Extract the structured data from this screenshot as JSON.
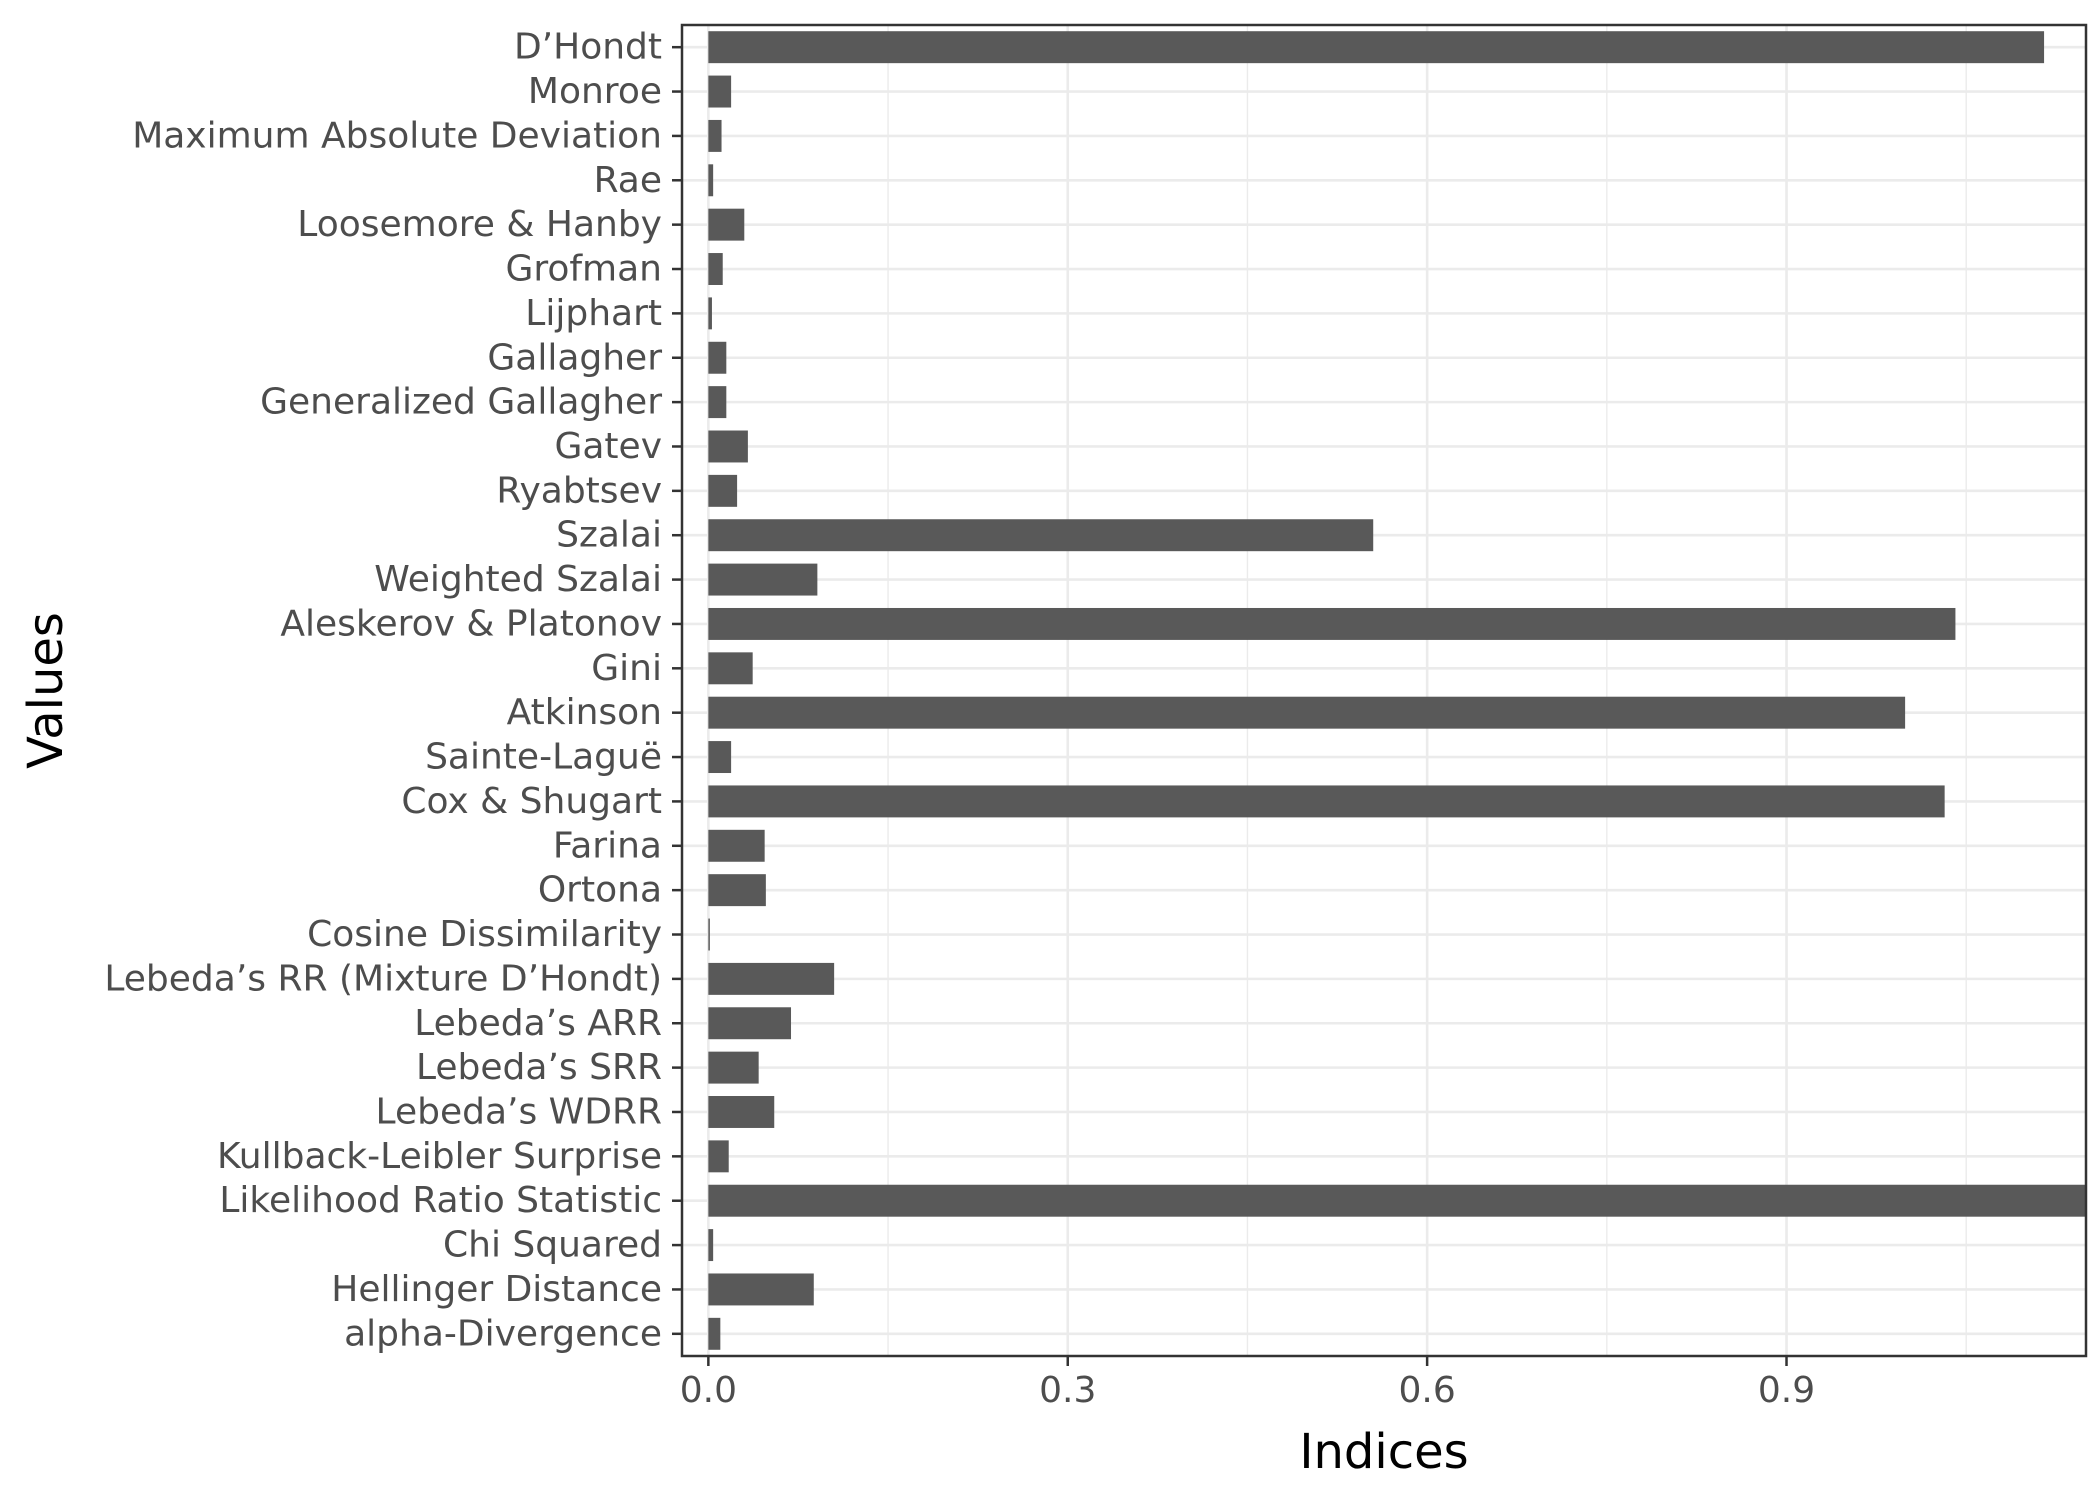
{
  "chart_data": {
    "type": "bar",
    "orientation": "horizontal",
    "xlabel": "Indices",
    "ylabel": "Values",
    "xlim": [
      -0.022,
      1.15
    ],
    "xticks": [
      0.0,
      0.3,
      0.6,
      0.9
    ],
    "xtick_labels": [
      "0.0",
      "0.3",
      "0.6",
      "0.9"
    ],
    "grid": true,
    "bar_color": "#595959",
    "categories": [
      "D’Hondt",
      "Monroe",
      "Maximum Absolute Deviation",
      "Rae",
      "Loosemore & Hanby",
      "Grofman",
      "Lijphart",
      "Gallagher",
      "Generalized Gallagher",
      "Gatev",
      "Ryabtsev",
      "Szalai",
      "Weighted Szalai",
      "Aleskerov & Platonov",
      "Gini",
      "Atkinson",
      "Sainte-Laguë",
      "Cox & Shugart",
      "Farina",
      "Ortona",
      "Cosine Dissimilarity",
      "Lebeda’s RR (Mixture D’Hondt)",
      "Lebeda’s ARR",
      "Lebeda’s SRR",
      "Lebeda’s WDRR",
      "Kullback-Leibler Surprise",
      "Likelihood Ratio Statistic",
      "Chi Squared",
      "Hellinger Distance",
      "alpha-Divergence"
    ],
    "values": [
      1.115,
      0.019,
      0.011,
      0.004,
      0.03,
      0.012,
      0.003,
      0.015,
      0.015,
      0.033,
      0.024,
      0.555,
      0.091,
      1.041,
      0.037,
      0.999,
      0.019,
      1.032,
      0.047,
      0.048,
      0.001,
      0.105,
      0.069,
      0.042,
      0.055,
      0.017,
      1.17,
      0.004,
      0.088,
      0.01
    ]
  }
}
